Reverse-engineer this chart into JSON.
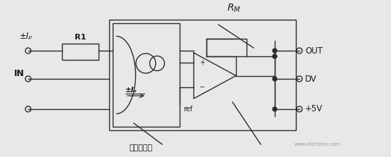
{
  "bg_color": "#e8e8e8",
  "line_color": "#2a2a2a",
  "label_ip": "±Iₚ",
  "label_in": "IN",
  "label_is": "±Iₛ",
  "label_rm": "$R_M$",
  "label_ref": "ref",
  "label_out": "OUT",
  "label_dv": "DV",
  "label_5v": "+5V",
  "label_r1": "R1",
  "label_bottom": "闭环传感器",
  "text_color": "#1a1a1a",
  "watermark": "www.elecfans.com"
}
